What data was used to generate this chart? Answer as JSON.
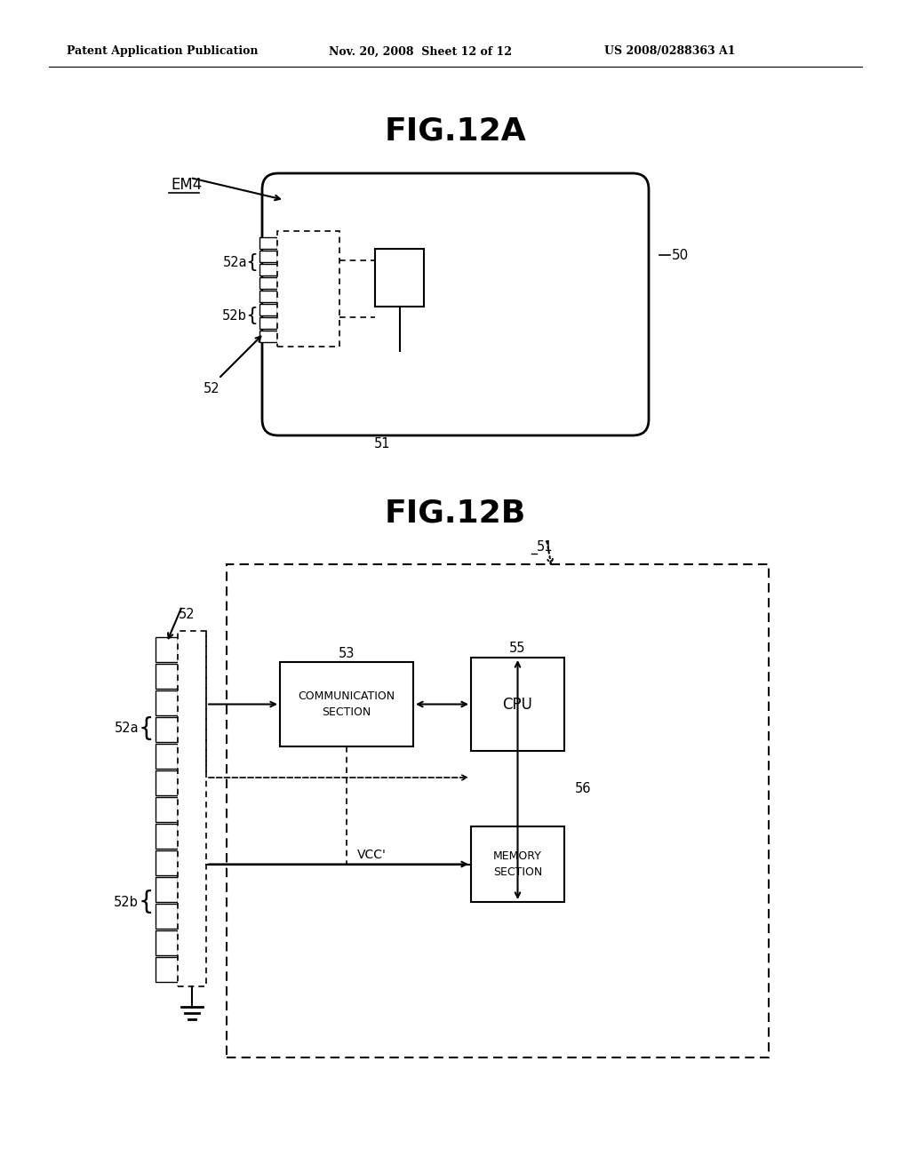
{
  "bg_color": "#ffffff",
  "header_left": "Patent Application Publication",
  "header_mid": "Nov. 20, 2008  Sheet 12 of 12",
  "header_right": "US 2008/0288363 A1",
  "fig12a_title": "FIG.12A",
  "fig12b_title": "FIG.12B",
  "label_50": "50",
  "label_51a": "51",
  "label_52a_top": "52a",
  "label_52b_top": "52b",
  "label_52_top": "52",
  "label_EM4": "EM4",
  "label_51b": "51",
  "label_52_bot": "52",
  "label_52a_bot": "52a",
  "label_52b_bot": "52b",
  "label_53": "53",
  "label_55": "55",
  "label_56": "56",
  "label_vcc": "VCC'",
  "text_comm": "COMMUNICATION\nSECTION",
  "text_cpu": "CPU",
  "text_mem": "MEMORY\nSECTION"
}
